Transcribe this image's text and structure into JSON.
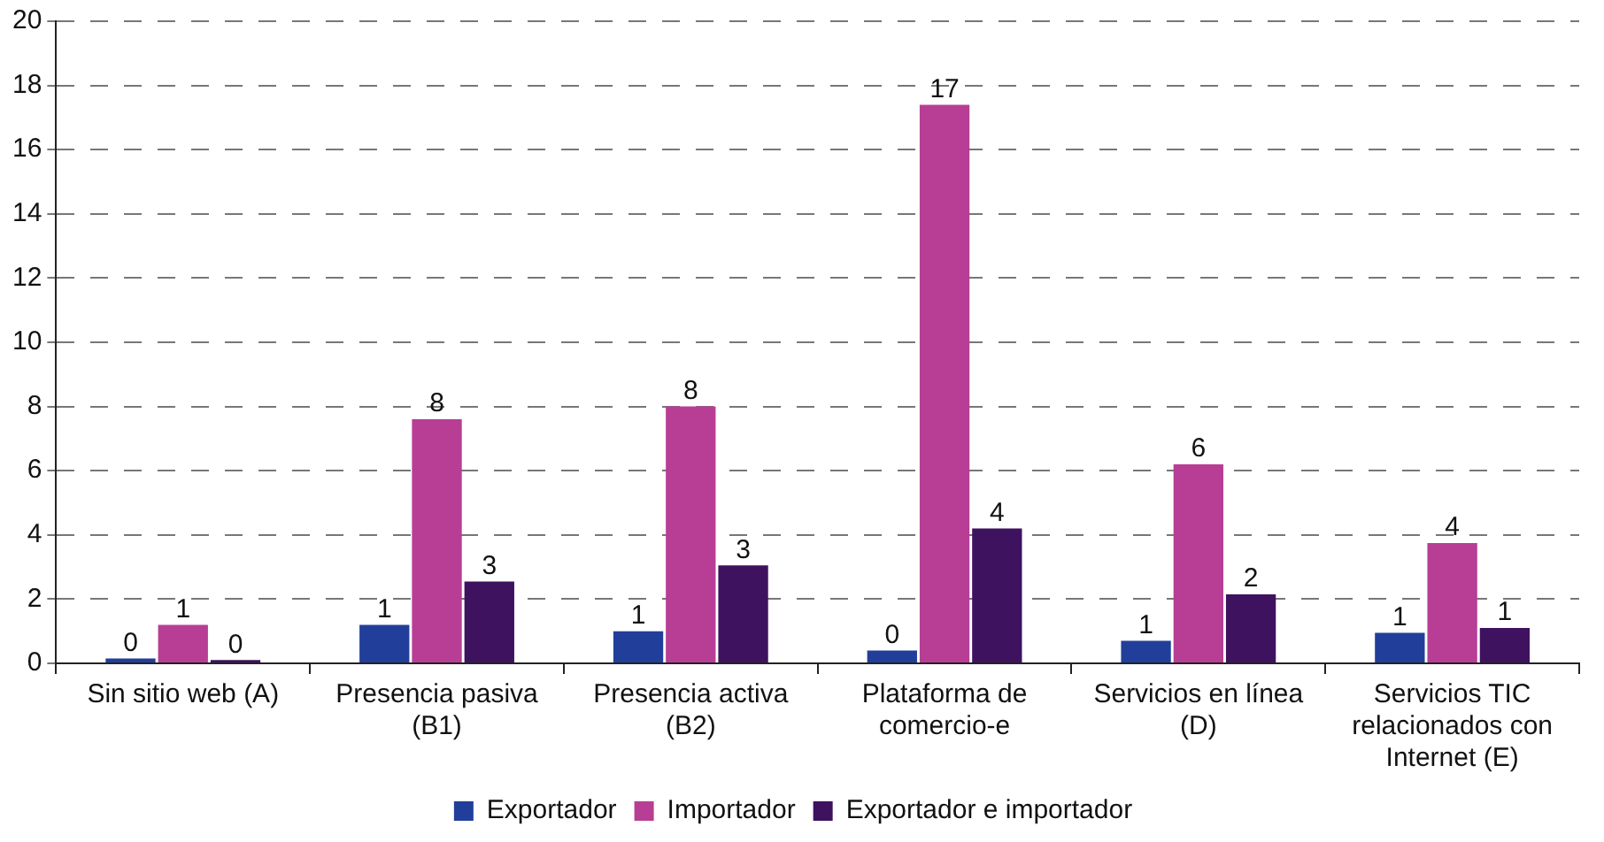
{
  "chart_data": {
    "type": "bar",
    "categories": [
      "Sin sitio web (A)",
      "Presencia pasiva (B1)",
      "Presencia activa (B2)",
      "Plataforma de comercio-e",
      "Servicios en línea (D)",
      "Servicios TIC relacionados con Internet (E)"
    ],
    "series": [
      {
        "name": "Exportador",
        "color": "#213f9a",
        "values": [
          0.15,
          1.2,
          1.0,
          0.4,
          0.7,
          0.95
        ],
        "value_labels": [
          "0",
          "1",
          "1",
          "0",
          "1",
          "1"
        ]
      },
      {
        "name": "Importador",
        "color": "#b73e94",
        "values": [
          1.2,
          7.6,
          8.0,
          17.4,
          6.2,
          3.75
        ],
        "value_labels": [
          "1",
          "8",
          "8",
          "17",
          "6",
          "4"
        ]
      },
      {
        "name": "Exportador e importador",
        "color": "#3f125f",
        "values": [
          0.1,
          2.55,
          3.05,
          4.2,
          2.15,
          1.1
        ],
        "value_labels": [
          "0",
          "3",
          "3",
          "4",
          "2",
          "1"
        ]
      }
    ],
    "ylim": [
      0,
      20
    ],
    "yticks": [
      0,
      2,
      4,
      6,
      8,
      10,
      12,
      14,
      16,
      18,
      20
    ],
    "grid": "y",
    "legend": "bottom"
  }
}
